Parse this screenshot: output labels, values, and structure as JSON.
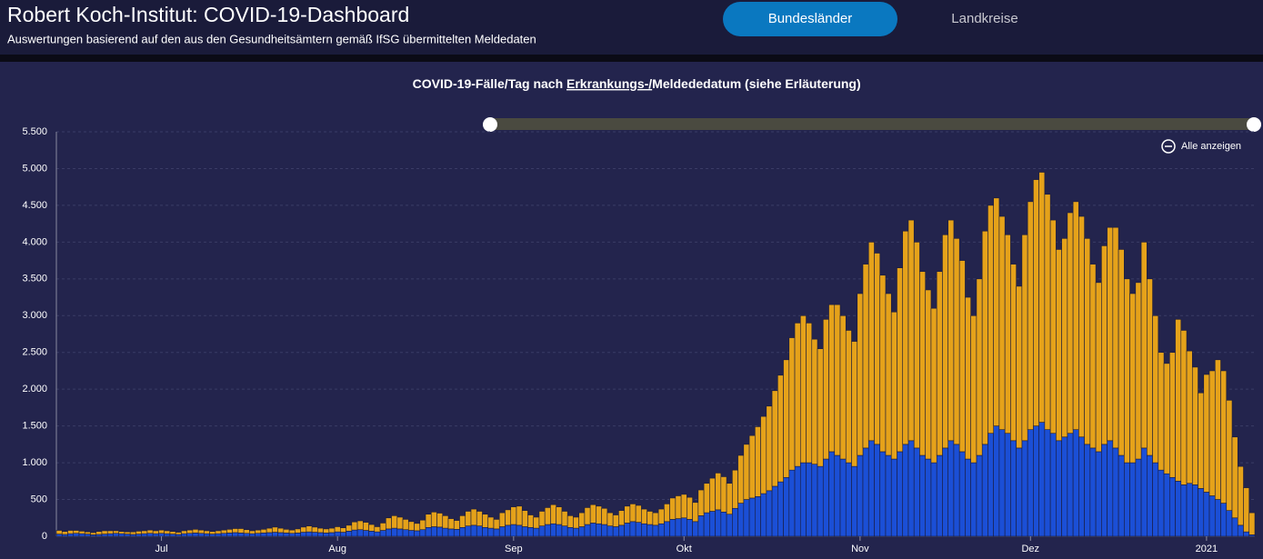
{
  "header": {
    "title": "Robert Koch-Institut: COVID-19-Dashboard",
    "subtitle": "Auswertungen basierend auf den aus den Gesundheitsämtern gemäß IfSG übermittelten Meldedaten",
    "tabs": [
      "Bundesländer",
      "Landkreise"
    ]
  },
  "controls": {
    "zoom_reset": "Alle anzeigen"
  },
  "chart_data": {
    "type": "bar",
    "stacked": true,
    "title": [
      "COVID-19-Fälle/Tag nach ",
      "Erkrankungs-/",
      "Meldededatum (siehe Erläuterung)"
    ],
    "categories": [
      null,
      null,
      null,
      null,
      null,
      null,
      null,
      null,
      null,
      null,
      null,
      null,
      null,
      null,
      null,
      null,
      null,
      null,
      "Jul",
      null,
      null,
      null,
      null,
      null,
      null,
      null,
      null,
      null,
      null,
      null,
      null,
      null,
      null,
      null,
      null,
      null,
      null,
      null,
      null,
      null,
      null,
      null,
      null,
      null,
      null,
      null,
      null,
      null,
      null,
      "Aug",
      null,
      null,
      null,
      null,
      null,
      null,
      null,
      null,
      null,
      null,
      null,
      null,
      null,
      null,
      null,
      null,
      null,
      null,
      null,
      null,
      null,
      null,
      null,
      null,
      null,
      null,
      null,
      null,
      null,
      null,
      "Sep",
      null,
      null,
      null,
      null,
      null,
      null,
      null,
      null,
      null,
      null,
      null,
      null,
      null,
      null,
      null,
      null,
      null,
      null,
      null,
      null,
      null,
      null,
      null,
      null,
      null,
      null,
      null,
      null,
      null,
      "Okt",
      null,
      null,
      null,
      null,
      null,
      null,
      null,
      null,
      null,
      null,
      null,
      null,
      null,
      null,
      null,
      null,
      null,
      null,
      null,
      null,
      null,
      null,
      null,
      null,
      null,
      null,
      null,
      null,
      null,
      null,
      "Nov",
      null,
      null,
      null,
      null,
      null,
      null,
      null,
      null,
      null,
      null,
      null,
      null,
      null,
      null,
      null,
      null,
      null,
      null,
      null,
      null,
      null,
      null,
      null,
      null,
      null,
      null,
      null,
      null,
      null,
      "Dez",
      null,
      null,
      null,
      null,
      null,
      null,
      null,
      null,
      null,
      null,
      null,
      null,
      null,
      null,
      null,
      null,
      null,
      null,
      null,
      null,
      null,
      null,
      null,
      null,
      null,
      null,
      null,
      null,
      null,
      null,
      "2021",
      null,
      null,
      null,
      null,
      null,
      null,
      null,
      null
    ],
    "series": [
      {
        "color": "#1b4fd6",
        "values": [
          30,
          25,
          35,
          40,
          35,
          30,
          20,
          25,
          30,
          35,
          40,
          35,
          30,
          25,
          30,
          35,
          40,
          35,
          40,
          35,
          30,
          25,
          35,
          40,
          45,
          40,
          35,
          30,
          35,
          40,
          45,
          50,
          45,
          40,
          35,
          40,
          45,
          50,
          55,
          50,
          45,
          40,
          45,
          55,
          60,
          55,
          50,
          45,
          50,
          60,
          55,
          70,
          85,
          90,
          80,
          70,
          60,
          80,
          100,
          110,
          100,
          90,
          80,
          75,
          90,
          120,
          130,
          125,
          110,
          100,
          95,
          120,
          140,
          150,
          140,
          120,
          110,
          100,
          130,
          150,
          160,
          150,
          130,
          120,
          110,
          140,
          160,
          170,
          160,
          140,
          120,
          110,
          130,
          160,
          180,
          170,
          160,
          140,
          130,
          150,
          180,
          200,
          190,
          170,
          160,
          150,
          170,
          200,
          230,
          240,
          250,
          230,
          200,
          280,
          320,
          340,
          360,
          330,
          300,
          380,
          450,
          500,
          520,
          540,
          580,
          620,
          680,
          740,
          800,
          900,
          950,
          1000,
          1000,
          980,
          950,
          1050,
          1150,
          1100,
          1050,
          1000,
          950,
          1100,
          1200,
          1300,
          1250,
          1150,
          1100,
          1050,
          1150,
          1250,
          1300,
          1200,
          1100,
          1050,
          1000,
          1100,
          1200,
          1300,
          1250,
          1150,
          1050,
          1000,
          1100,
          1250,
          1400,
          1500,
          1450,
          1400,
          1300,
          1200,
          1300,
          1450,
          1500,
          1550,
          1450,
          1400,
          1300,
          1350,
          1400,
          1450,
          1350,
          1250,
          1200,
          1150,
          1250,
          1300,
          1200,
          1100,
          1000,
          1000,
          1050,
          1200,
          1100,
          1000,
          900,
          850,
          800,
          750,
          700,
          720,
          700,
          650,
          600,
          550,
          500,
          450,
          350,
          250,
          150,
          60,
          20
        ]
      },
      {
        "color": "#e5a21a",
        "values": [
          50,
          40,
          45,
          40,
          35,
          30,
          30,
          40,
          45,
          40,
          35,
          30,
          30,
          35,
          40,
          40,
          45,
          40,
          45,
          40,
          35,
          30,
          40,
          45,
          50,
          45,
          40,
          35,
          40,
          45,
          50,
          55,
          60,
          50,
          40,
          45,
          50,
          60,
          70,
          60,
          50,
          45,
          55,
          70,
          80,
          70,
          60,
          55,
          60,
          70,
          60,
          80,
          110,
          120,
          110,
          90,
          70,
          100,
          150,
          170,
          160,
          140,
          120,
          100,
          130,
          180,
          200,
          190,
          170,
          140,
          120,
          160,
          200,
          220,
          200,
          180,
          150,
          130,
          190,
          210,
          240,
          260,
          220,
          170,
          150,
          200,
          230,
          260,
          240,
          200,
          160,
          150,
          190,
          230,
          250,
          240,
          220,
          180,
          160,
          200,
          230,
          240,
          230,
          200,
          180,
          170,
          200,
          240,
          290,
          310,
          320,
          300,
          260,
          350,
          400,
          450,
          500,
          480,
          420,
          520,
          650,
          750,
          850,
          950,
          1050,
          1150,
          1300,
          1450,
          1600,
          1800,
          1950,
          2000,
          1900,
          1700,
          1600,
          1900,
          2000,
          2050,
          1950,
          1800,
          1700,
          2200,
          2500,
          2700,
          2600,
          2400,
          2200,
          2000,
          2500,
          2900,
          3000,
          2800,
          2500,
          2300,
          2100,
          2500,
          2900,
          3000,
          2800,
          2600,
          2200,
          2000,
          2400,
          2900,
          3100,
          3100,
          2900,
          2700,
          2400,
          2200,
          2800,
          3100,
          3350,
          3400,
          3200,
          2900,
          2600,
          2700,
          3000,
          3100,
          3000,
          2800,
          2500,
          2300,
          2700,
          2900,
          3000,
          2800,
          2500,
          2300,
          2400,
          2800,
          2400,
          2000,
          1600,
          1500,
          1700,
          2200,
          2100,
          1800,
          1600,
          1300,
          1600,
          1700,
          1900,
          1800,
          1500,
          1100,
          800,
          600,
          300
        ]
      }
    ],
    "ylim": [
      0,
      5500
    ],
    "yticks": [
      0,
      500,
      {
        "value": 1000,
        "label": "1.000"
      },
      {
        "value": 1500,
        "label": "1.500"
      },
      {
        "value": 2000,
        "label": "2.000"
      },
      {
        "value": 2500,
        "label": "2.500"
      },
      {
        "value": 3000,
        "label": "3.000"
      },
      {
        "value": 3500,
        "label": "3.500"
      },
      {
        "value": 4000,
        "label": "4.000"
      },
      {
        "value": 4500,
        "label": "4.500"
      },
      {
        "value": 5000,
        "label": "5.000"
      },
      {
        "value": 5500,
        "label": "5.500"
      }
    ],
    "grid": true
  }
}
